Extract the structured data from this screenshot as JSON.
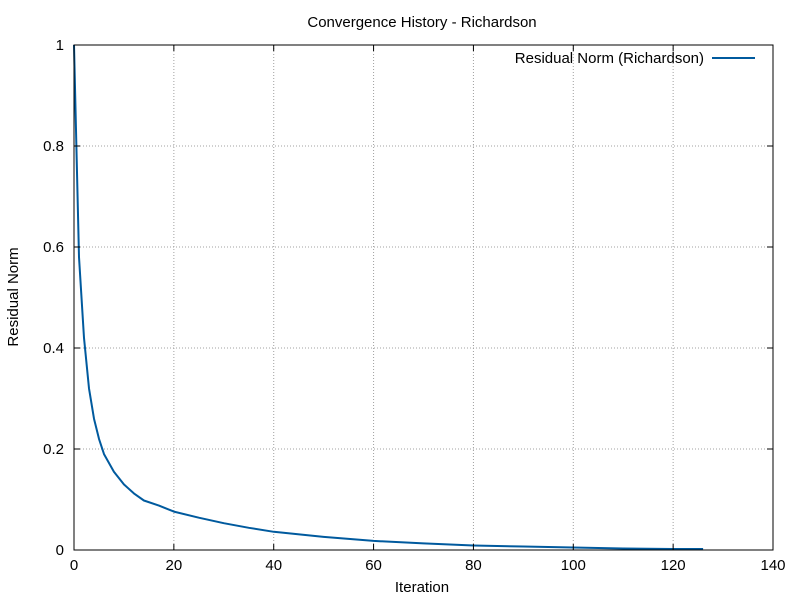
{
  "chart_data": {
    "type": "line",
    "title": "Convergence History - Richardson",
    "xlabel": "Iteration",
    "ylabel": "Residual Norm",
    "xlim": [
      0,
      140
    ],
    "ylim": [
      0,
      1
    ],
    "xticks": [
      0,
      20,
      40,
      60,
      80,
      100,
      120,
      140
    ],
    "yticks": [
      0,
      0.2,
      0.4,
      0.6,
      0.8,
      1
    ],
    "xtick_labels": [
      "0",
      "20",
      "40",
      "60",
      "80",
      "100",
      "120",
      "140"
    ],
    "ytick_labels": [
      "0",
      "0.2",
      "0.4",
      "0.6",
      "0.8",
      "1"
    ],
    "grid": true,
    "legend_position": "top-right",
    "series": [
      {
        "name": "Residual Norm (Richardson)",
        "color": "#005a9e",
        "x": [
          0,
          1,
          2,
          3,
          4,
          5,
          6,
          8,
          10,
          12,
          14,
          17,
          20,
          25,
          30,
          35,
          40,
          50,
          60,
          70,
          80,
          90,
          100,
          110,
          120,
          126
        ],
        "y": [
          1.0,
          0.58,
          0.42,
          0.32,
          0.26,
          0.22,
          0.19,
          0.155,
          0.13,
          0.112,
          0.098,
          0.088,
          0.076,
          0.064,
          0.053,
          0.044,
          0.036,
          0.026,
          0.018,
          0.013,
          0.009,
          0.007,
          0.005,
          0.003,
          0.002,
          0.002
        ]
      }
    ]
  }
}
